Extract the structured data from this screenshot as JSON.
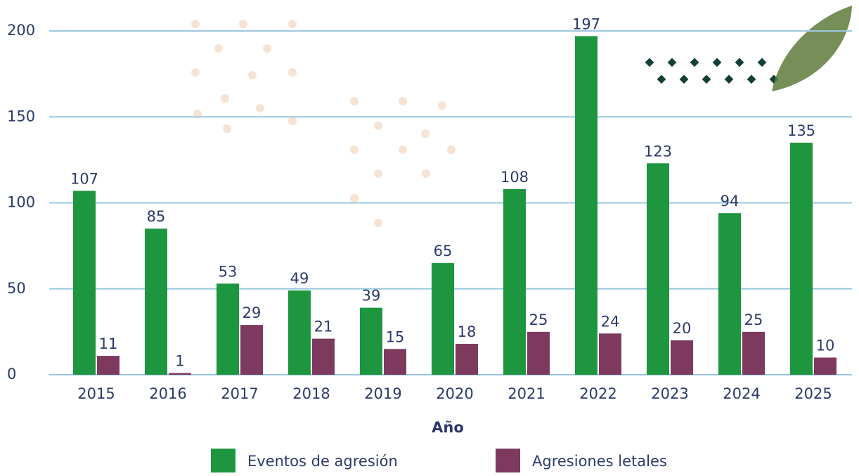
{
  "chart_data": {
    "type": "bar",
    "x_label": "Año",
    "categories": [
      "2015",
      "2016",
      "2017",
      "2018",
      "2019",
      "2020",
      "2021",
      "2022",
      "2023",
      "2024",
      "2025"
    ],
    "series": [
      {
        "name": "Eventos de agresión",
        "color": "#1e9640",
        "values": [
          107,
          85,
          53,
          49,
          39,
          65,
          108,
          197,
          123,
          94,
          135
        ]
      },
      {
        "name": "Agresiones letales",
        "color": "#7d3a5e",
        "values": [
          11,
          1,
          29,
          21,
          15,
          18,
          25,
          24,
          20,
          25,
          10
        ]
      }
    ],
    "ylim": [
      0,
      200
    ],
    "yticks": [
      0,
      50,
      100,
      150,
      200
    ],
    "grid": true
  }
}
